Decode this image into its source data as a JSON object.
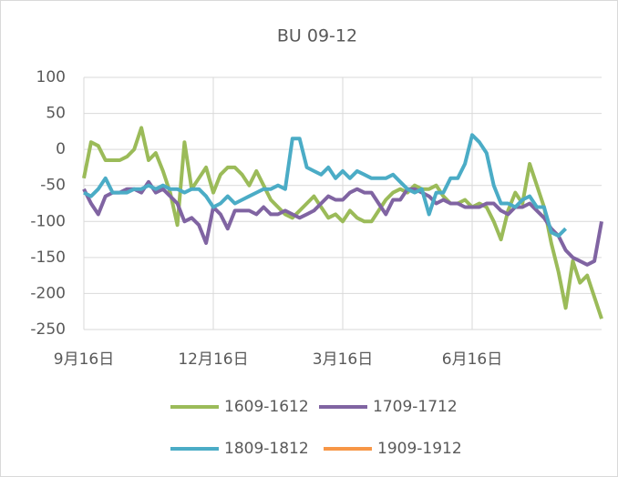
{
  "chart_data": {
    "type": "line",
    "title": "BU 09-12",
    "categories": [
      "9月16日",
      null,
      null,
      null,
      null,
      null,
      null,
      null,
      null,
      null,
      null,
      null,
      null,
      null,
      null,
      null,
      null,
      null,
      "12月16日",
      null,
      null,
      null,
      null,
      null,
      null,
      null,
      null,
      null,
      null,
      null,
      null,
      null,
      null,
      null,
      null,
      null,
      "3月16日",
      null,
      null,
      null,
      null,
      null,
      null,
      null,
      null,
      null,
      null,
      null,
      null,
      null,
      null,
      null,
      null,
      null,
      "6月16日",
      null,
      null,
      null,
      null,
      null,
      null,
      null,
      null,
      null,
      null,
      null,
      null,
      null,
      null,
      null,
      null,
      null,
      null
    ],
    "series": [
      {
        "name": "1609-1612",
        "color": "#9bbb59",
        "values": [
          -40,
          10,
          5,
          -15,
          -15,
          -15,
          -10,
          0,
          30,
          -15,
          -5,
          -30,
          -60,
          -105,
          10,
          -55,
          -40,
          -25,
          -60,
          -35,
          -25,
          -25,
          -35,
          -50,
          -30,
          -50,
          -70,
          -80,
          -90,
          -95,
          -85,
          -75,
          -65,
          -80,
          -95,
          -90,
          -100,
          -85,
          -95,
          -100,
          -100,
          -85,
          -70,
          -60,
          -55,
          -60,
          -50,
          -55,
          -55,
          -50,
          -65,
          -75,
          -75,
          -70,
          -80,
          -75,
          -80,
          -100,
          -125,
          -85,
          -60,
          -75,
          -20,
          -50,
          -80,
          -130,
          -170,
          -220,
          -155,
          -185,
          -175,
          -205,
          -235
        ]
      },
      {
        "name": "1709-1712",
        "color": "#8064a2",
        "values": [
          -55,
          -75,
          -90,
          -65,
          -60,
          -60,
          -55,
          -55,
          -60,
          -45,
          -60,
          -55,
          -65,
          -75,
          -100,
          -95,
          -105,
          -130,
          -80,
          -90,
          -110,
          -85,
          -85,
          -85,
          -90,
          -80,
          -90,
          -90,
          -85,
          -90,
          -95,
          -90,
          -85,
          -75,
          -65,
          -70,
          -70,
          -60,
          -55,
          -60,
          -60,
          -75,
          -90,
          -70,
          -70,
          -55,
          -55,
          -60,
          -65,
          -75,
          -70,
          -75,
          -75,
          -80,
          -80,
          -80,
          -75,
          -75,
          -85,
          -90,
          -80,
          -80,
          -75,
          -85,
          -95,
          -110,
          -120,
          -140,
          -150,
          -155,
          -160,
          -155,
          -100
        ]
      },
      {
        "name": "1809-1812",
        "color": "#4bacc6",
        "values": [
          -60,
          -65,
          -55,
          -40,
          -60,
          -60,
          -60,
          -55,
          -55,
          -50,
          -55,
          -50,
          -55,
          -55,
          -60,
          -55,
          -55,
          -65,
          -80,
          -75,
          -65,
          -75,
          -70,
          -65,
          -60,
          -55,
          -55,
          -50,
          -55,
          15,
          15,
          -25,
          -30,
          -35,
          -25,
          -40,
          -30,
          -40,
          -30,
          -35,
          -40,
          -40,
          -40,
          -35,
          -45,
          -55,
          -60,
          -55,
          -90,
          -60,
          -60,
          -40,
          -40,
          -20,
          20,
          10,
          -5,
          -50,
          -75,
          -75,
          -80,
          -70,
          -65,
          -80,
          -80,
          -115,
          -120,
          -110,
          null,
          null,
          null,
          null,
          null
        ]
      },
      {
        "name": "1909-1912",
        "color": "#f79646",
        "values": [
          null,
          null,
          null,
          null,
          null,
          null,
          null,
          null,
          null,
          null,
          null,
          null,
          null,
          null,
          null,
          null,
          null,
          null,
          null,
          null,
          null,
          null,
          null,
          null,
          null,
          null,
          null,
          null,
          null,
          null,
          null,
          null,
          null,
          null,
          null,
          null,
          null,
          null,
          null,
          null,
          null,
          null,
          null,
          null,
          null,
          null,
          null,
          null,
          null,
          null,
          null,
          null,
          null,
          null,
          null,
          null,
          null,
          null,
          null,
          null,
          null,
          null,
          null,
          null,
          null,
          null,
          null,
          null,
          null,
          null,
          null,
          null,
          null
        ]
      }
    ],
    "ylim": [
      -250,
      100
    ],
    "yticks": [
      -250,
      -200,
      -150,
      -100,
      -50,
      0,
      50,
      100
    ],
    "grid": true
  }
}
